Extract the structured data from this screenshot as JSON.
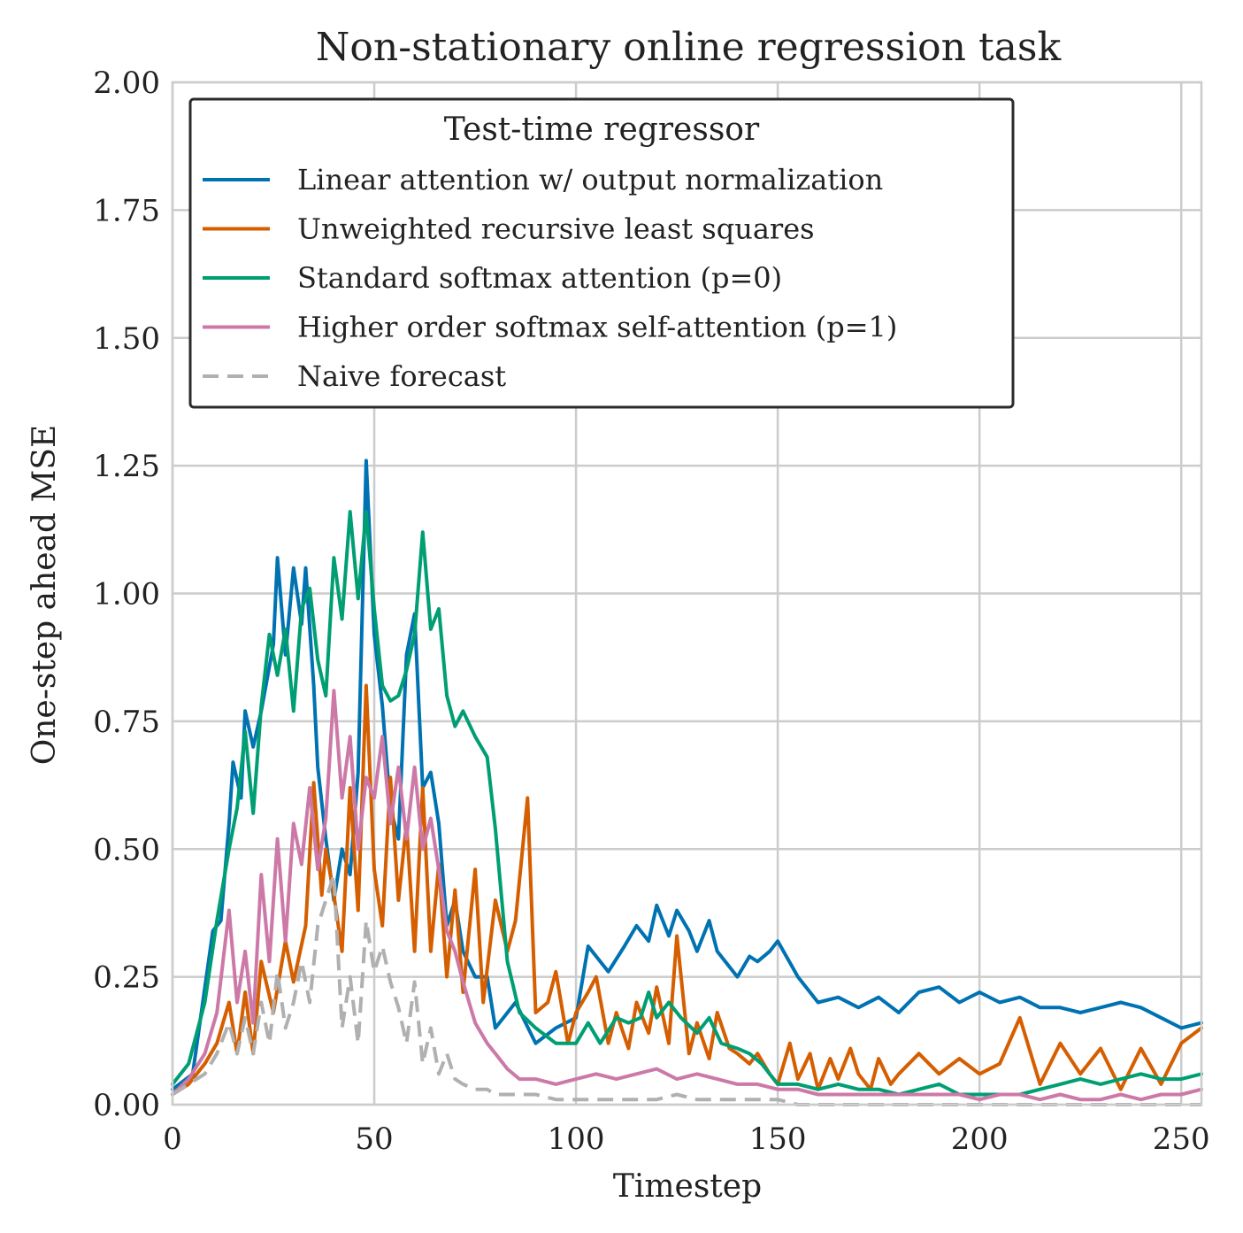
{
  "chart_data": {
    "type": "line",
    "title": "Non-stationary online regression task",
    "xlabel": "Timestep",
    "ylabel": "One-step ahead MSE",
    "xlim": [
      0,
      255
    ],
    "ylim": [
      0,
      2.0
    ],
    "grid": true,
    "xticks": [
      0,
      50,
      100,
      150,
      200,
      250
    ],
    "xtick_labels": [
      "0",
      "50",
      "100",
      "150",
      "200",
      "250"
    ],
    "yticks": [
      0,
      0.25,
      0.5,
      0.75,
      1.0,
      1.25,
      1.5,
      1.75,
      2.0
    ],
    "ytick_labels": [
      "0.00",
      "0.25",
      "0.50",
      "0.75",
      "1.00",
      "1.25",
      "1.50",
      "1.75",
      "2.00"
    ],
    "legend": {
      "title": "Test-time regressor",
      "placement": "upper-left"
    },
    "series": [
      {
        "name": "Linear attention w/ output normalization",
        "color": "#0072b2",
        "dash": "solid",
        "x": [
          0,
          5,
          10,
          12,
          14,
          15,
          17,
          18,
          20,
          22,
          25,
          26,
          28,
          30,
          32,
          33,
          35,
          36,
          38,
          40,
          42,
          44,
          46,
          48,
          50,
          52,
          54,
          56,
          58,
          60,
          62,
          64,
          66,
          68,
          70,
          72,
          75,
          78,
          80,
          85,
          90,
          95,
          100,
          103,
          105,
          108,
          112,
          115,
          118,
          120,
          123,
          125,
          128,
          130,
          133,
          135,
          138,
          140,
          143,
          145,
          148,
          150,
          155,
          160,
          165,
          170,
          175,
          180,
          185,
          190,
          195,
          200,
          205,
          210,
          215,
          220,
          225,
          230,
          235,
          240,
          245,
          250,
          255
        ],
        "values": [
          0.03,
          0.06,
          0.34,
          0.36,
          0.55,
          0.67,
          0.6,
          0.77,
          0.7,
          0.77,
          0.9,
          1.07,
          0.88,
          1.05,
          0.94,
          1.05,
          0.82,
          0.66,
          0.52,
          0.4,
          0.5,
          0.45,
          0.65,
          1.26,
          0.92,
          0.78,
          0.58,
          0.52,
          0.88,
          0.96,
          0.62,
          0.65,
          0.55,
          0.35,
          0.4,
          0.3,
          0.25,
          0.25,
          0.15,
          0.2,
          0.12,
          0.15,
          0.17,
          0.31,
          0.29,
          0.26,
          0.31,
          0.35,
          0.32,
          0.39,
          0.33,
          0.38,
          0.34,
          0.3,
          0.36,
          0.3,
          0.27,
          0.25,
          0.29,
          0.28,
          0.3,
          0.32,
          0.25,
          0.2,
          0.21,
          0.19,
          0.21,
          0.18,
          0.22,
          0.23,
          0.2,
          0.22,
          0.2,
          0.21,
          0.19,
          0.19,
          0.18,
          0.19,
          0.2,
          0.19,
          0.17,
          0.15,
          0.16
        ]
      },
      {
        "name": "Unweighted recursive least squares",
        "color": "#d55e00",
        "dash": "solid",
        "x": [
          0,
          4,
          8,
          11,
          14,
          16,
          18,
          20,
          22,
          25,
          28,
          30,
          33,
          35,
          37,
          38,
          40,
          42,
          44,
          46,
          48,
          50,
          52,
          54,
          56,
          58,
          60,
          62,
          64,
          66,
          68,
          70,
          72,
          75,
          77,
          80,
          83,
          85,
          88,
          90,
          93,
          95,
          98,
          100,
          103,
          105,
          108,
          110,
          113,
          115,
          118,
          120,
          123,
          125,
          128,
          130,
          133,
          135,
          138,
          140,
          143,
          145,
          148,
          150,
          153,
          155,
          158,
          160,
          163,
          165,
          168,
          170,
          173,
          175,
          178,
          180,
          185,
          190,
          195,
          200,
          205,
          210,
          215,
          220,
          225,
          230,
          235,
          240,
          245,
          250,
          255
        ],
        "values": [
          0.02,
          0.04,
          0.08,
          0.12,
          0.2,
          0.1,
          0.22,
          0.1,
          0.28,
          0.18,
          0.32,
          0.24,
          0.35,
          0.63,
          0.41,
          0.5,
          0.41,
          0.3,
          0.62,
          0.38,
          0.82,
          0.46,
          0.35,
          0.64,
          0.4,
          0.55,
          0.3,
          0.62,
          0.3,
          0.47,
          0.25,
          0.42,
          0.22,
          0.46,
          0.2,
          0.4,
          0.3,
          0.36,
          0.6,
          0.18,
          0.2,
          0.26,
          0.12,
          0.18,
          0.22,
          0.25,
          0.12,
          0.18,
          0.11,
          0.2,
          0.14,
          0.23,
          0.12,
          0.33,
          0.1,
          0.16,
          0.09,
          0.18,
          0.11,
          0.1,
          0.08,
          0.1,
          0.06,
          0.04,
          0.12,
          0.05,
          0.1,
          0.03,
          0.09,
          0.05,
          0.11,
          0.06,
          0.03,
          0.09,
          0.04,
          0.06,
          0.1,
          0.06,
          0.09,
          0.06,
          0.08,
          0.17,
          0.04,
          0.12,
          0.06,
          0.11,
          0.03,
          0.11,
          0.04,
          0.12,
          0.15
        ]
      },
      {
        "name": "Standard softmax attention (p=0)",
        "color": "#009e73",
        "dash": "solid",
        "x": [
          0,
          4,
          8,
          11,
          14,
          16,
          18,
          20,
          22,
          24,
          26,
          28,
          30,
          32,
          34,
          36,
          38,
          40,
          42,
          44,
          46,
          48,
          50,
          52,
          54,
          56,
          58,
          60,
          62,
          64,
          66,
          68,
          70,
          72,
          75,
          78,
          80,
          83,
          86,
          90,
          95,
          100,
          103,
          106,
          110,
          113,
          116,
          118,
          120,
          123,
          126,
          130,
          133,
          136,
          140,
          143,
          146,
          150,
          155,
          160,
          165,
          170,
          175,
          180,
          185,
          190,
          195,
          200,
          205,
          210,
          215,
          220,
          225,
          230,
          235,
          240,
          245,
          250,
          255
        ],
        "values": [
          0.04,
          0.08,
          0.2,
          0.36,
          0.5,
          0.58,
          0.73,
          0.57,
          0.78,
          0.92,
          0.84,
          0.93,
          0.77,
          0.97,
          1.01,
          0.87,
          0.8,
          1.07,
          0.95,
          1.16,
          0.99,
          1.16,
          0.97,
          0.82,
          0.79,
          0.8,
          0.85,
          0.92,
          1.12,
          0.93,
          0.97,
          0.8,
          0.74,
          0.77,
          0.72,
          0.68,
          0.54,
          0.28,
          0.18,
          0.15,
          0.12,
          0.12,
          0.16,
          0.12,
          0.17,
          0.16,
          0.17,
          0.22,
          0.17,
          0.2,
          0.17,
          0.14,
          0.17,
          0.12,
          0.11,
          0.1,
          0.08,
          0.04,
          0.04,
          0.03,
          0.04,
          0.03,
          0.03,
          0.02,
          0.03,
          0.04,
          0.02,
          0.02,
          0.02,
          0.02,
          0.03,
          0.04,
          0.05,
          0.04,
          0.05,
          0.06,
          0.05,
          0.05,
          0.06
        ]
      },
      {
        "name": "Higher order softmax self-attention (p=1)",
        "color": "#cc79a7",
        "dash": "solid",
        "x": [
          0,
          4,
          8,
          11,
          14,
          16,
          18,
          20,
          22,
          24,
          26,
          28,
          30,
          32,
          34,
          36,
          38,
          40,
          42,
          44,
          46,
          48,
          50,
          52,
          54,
          56,
          58,
          60,
          62,
          64,
          66,
          68,
          70,
          72,
          75,
          78,
          80,
          83,
          86,
          90,
          95,
          100,
          105,
          110,
          115,
          120,
          125,
          130,
          135,
          140,
          145,
          150,
          155,
          160,
          165,
          170,
          175,
          180,
          185,
          190,
          195,
          200,
          205,
          210,
          215,
          220,
          225,
          230,
          235,
          240,
          245,
          250,
          255
        ],
        "values": [
          0.02,
          0.05,
          0.1,
          0.18,
          0.38,
          0.2,
          0.3,
          0.16,
          0.45,
          0.28,
          0.52,
          0.32,
          0.55,
          0.47,
          0.62,
          0.46,
          0.56,
          0.81,
          0.6,
          0.72,
          0.5,
          0.64,
          0.6,
          0.72,
          0.55,
          0.66,
          0.52,
          0.66,
          0.5,
          0.56,
          0.46,
          0.34,
          0.3,
          0.24,
          0.16,
          0.12,
          0.1,
          0.07,
          0.05,
          0.05,
          0.04,
          0.05,
          0.06,
          0.05,
          0.06,
          0.07,
          0.05,
          0.06,
          0.05,
          0.04,
          0.04,
          0.03,
          0.03,
          0.02,
          0.02,
          0.02,
          0.02,
          0.02,
          0.02,
          0.02,
          0.02,
          0.01,
          0.02,
          0.02,
          0.01,
          0.02,
          0.01,
          0.01,
          0.02,
          0.01,
          0.02,
          0.02,
          0.03
        ]
      },
      {
        "name": "Naive forecast",
        "color": "#b0b0b0",
        "dash": "dashed",
        "x": [
          0,
          4,
          8,
          11,
          14,
          16,
          18,
          20,
          22,
          24,
          26,
          28,
          30,
          32,
          34,
          36,
          38,
          40,
          42,
          44,
          46,
          48,
          50,
          52,
          54,
          56,
          58,
          60,
          62,
          64,
          66,
          68,
          70,
          72,
          75,
          78,
          80,
          83,
          86,
          90,
          95,
          100,
          105,
          110,
          115,
          120,
          125,
          130,
          135,
          140,
          145,
          150,
          155,
          160,
          170,
          180,
          190,
          200,
          210,
          220,
          230,
          240,
          250,
          255
        ],
        "values": [
          0.02,
          0.04,
          0.06,
          0.1,
          0.16,
          0.1,
          0.17,
          0.1,
          0.2,
          0.12,
          0.26,
          0.15,
          0.2,
          0.28,
          0.2,
          0.35,
          0.4,
          0.45,
          0.15,
          0.25,
          0.12,
          0.36,
          0.26,
          0.31,
          0.24,
          0.19,
          0.12,
          0.24,
          0.08,
          0.15,
          0.06,
          0.1,
          0.05,
          0.04,
          0.03,
          0.03,
          0.02,
          0.02,
          0.02,
          0.02,
          0.01,
          0.01,
          0.01,
          0.01,
          0.01,
          0.01,
          0.02,
          0.01,
          0.01,
          0.01,
          0.01,
          0.01,
          0.0,
          0.0,
          0.0,
          0.0,
          0.0,
          0.0,
          0.0,
          0.0,
          0.0,
          0.0,
          0.0,
          0.0
        ]
      }
    ]
  }
}
